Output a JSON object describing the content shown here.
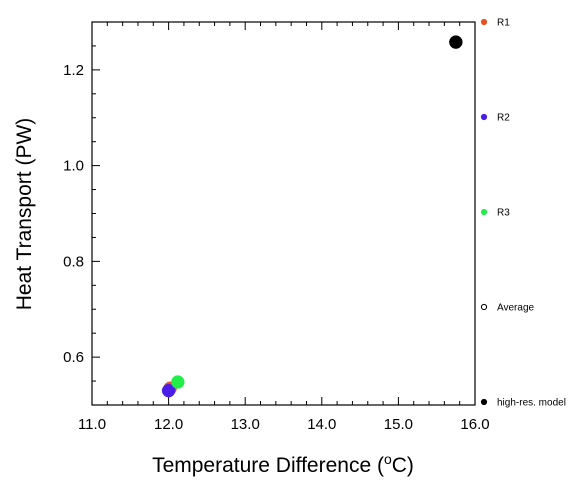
{
  "chart_data": {
    "type": "scatter",
    "xlabel": "Temperature Difference (",
    "xlabel_unit_sup": "o",
    "xlabel_unit_tail": "C)",
    "ylabel": "Heat Transport (PW)",
    "xlim": [
      11.0,
      16.0
    ],
    "ylim": [
      0.5,
      1.3
    ],
    "x_ticks": [
      11.0,
      12.0,
      13.0,
      14.0,
      15.0,
      16.0
    ],
    "x_tick_labels": [
      "11.0",
      "12.0",
      "13.0",
      "14.0",
      "15.0",
      "16.0"
    ],
    "y_ticks": [
      0.6,
      0.8,
      1.0,
      1.2
    ],
    "y_tick_labels": [
      "0.6",
      "0.8",
      "1.0",
      "1.2"
    ],
    "grid": false,
    "legend_position": "right",
    "series": [
      {
        "name": "R1",
        "color": "#e8501e",
        "marker": "filled-circle",
        "points": [
          [
            12.02,
            0.535
          ]
        ]
      },
      {
        "name": "R2",
        "color": "#4a1ee6",
        "marker": "filled-circle",
        "points": [
          [
            12.0,
            0.53
          ]
        ]
      },
      {
        "name": "R3",
        "color": "#22ee4a",
        "marker": "filled-circle",
        "points": [
          [
            12.12,
            0.548
          ]
        ]
      },
      {
        "name": "Average",
        "color": "#000000",
        "marker": "open-circle",
        "points": []
      },
      {
        "name": "high-res. model",
        "color": "#000000",
        "marker": "filled-circle",
        "points": [
          [
            15.75,
            1.258
          ]
        ]
      }
    ]
  }
}
